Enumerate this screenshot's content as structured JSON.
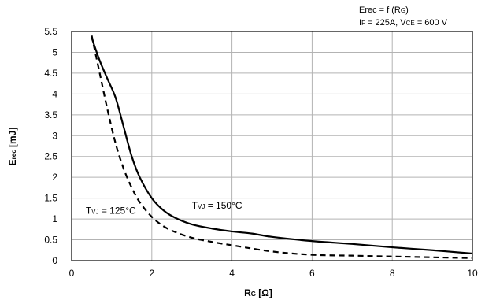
{
  "chart_data": {
    "type": "line",
    "title": "",
    "formula": {
      "main": "Erec = f (R",
      "sub": "G",
      "close": ")"
    },
    "conditions": {
      "if_label": "I",
      "if_sub": "F",
      "if_value": " = 225A, V",
      "vce_sub": "CE",
      "vce_value": " = 600 V"
    },
    "xlabel": {
      "main": "R",
      "sub": "G",
      "unit": " [Ω]"
    },
    "ylabel": {
      "main": "E",
      "sub": "rec",
      "unit": "  [mJ]"
    },
    "xlim": [
      0,
      10
    ],
    "ylim": [
      0,
      5.5
    ],
    "xticks": [
      "0",
      "2",
      "4",
      "6",
      "8",
      "10"
    ],
    "yticks": [
      "0",
      "0.5",
      "1",
      "1.5",
      "2",
      "2.5",
      "3",
      "3.5",
      "4",
      "4.5",
      "5",
      "5.5"
    ],
    "grid": true,
    "series": [
      {
        "name": "TVJ = 150°C",
        "style": "solid",
        "color": "#000000",
        "x": [
          0.5,
          0.7,
          0.9,
          1.1,
          1.3,
          1.5,
          1.7,
          2.0,
          2.3,
          2.6,
          3.0,
          3.5,
          4.0,
          4.5,
          5.0,
          6.0,
          7.0,
          8.0,
          9.0,
          10.0
        ],
        "y": [
          5.35,
          4.8,
          4.35,
          3.9,
          3.2,
          2.5,
          2.0,
          1.5,
          1.2,
          1.02,
          0.87,
          0.77,
          0.7,
          0.65,
          0.57,
          0.47,
          0.4,
          0.32,
          0.25,
          0.17
        ]
      },
      {
        "name": "TVJ = 125°C",
        "style": "dashed",
        "color": "#000000",
        "x": [
          0.5,
          0.7,
          0.9,
          1.1,
          1.3,
          1.5,
          1.7,
          2.0,
          2.3,
          2.6,
          3.0,
          3.5,
          4.0,
          5.0,
          6.0,
          7.0,
          8.0,
          9.0,
          10.0
        ],
        "y": [
          5.4,
          4.5,
          3.6,
          2.8,
          2.2,
          1.75,
          1.4,
          1.05,
          0.82,
          0.68,
          0.55,
          0.45,
          0.37,
          0.22,
          0.14,
          0.12,
          0.1,
          0.08,
          0.06
        ]
      }
    ],
    "annotations": [
      {
        "label": "T",
        "sub": "VJ",
        "value": " = 125°C",
        "at": [
          0.35,
          1.12
        ]
      },
      {
        "label": "T",
        "sub": "VJ",
        "value": " = 150°C",
        "at": [
          3.0,
          1.25
        ]
      }
    ]
  }
}
